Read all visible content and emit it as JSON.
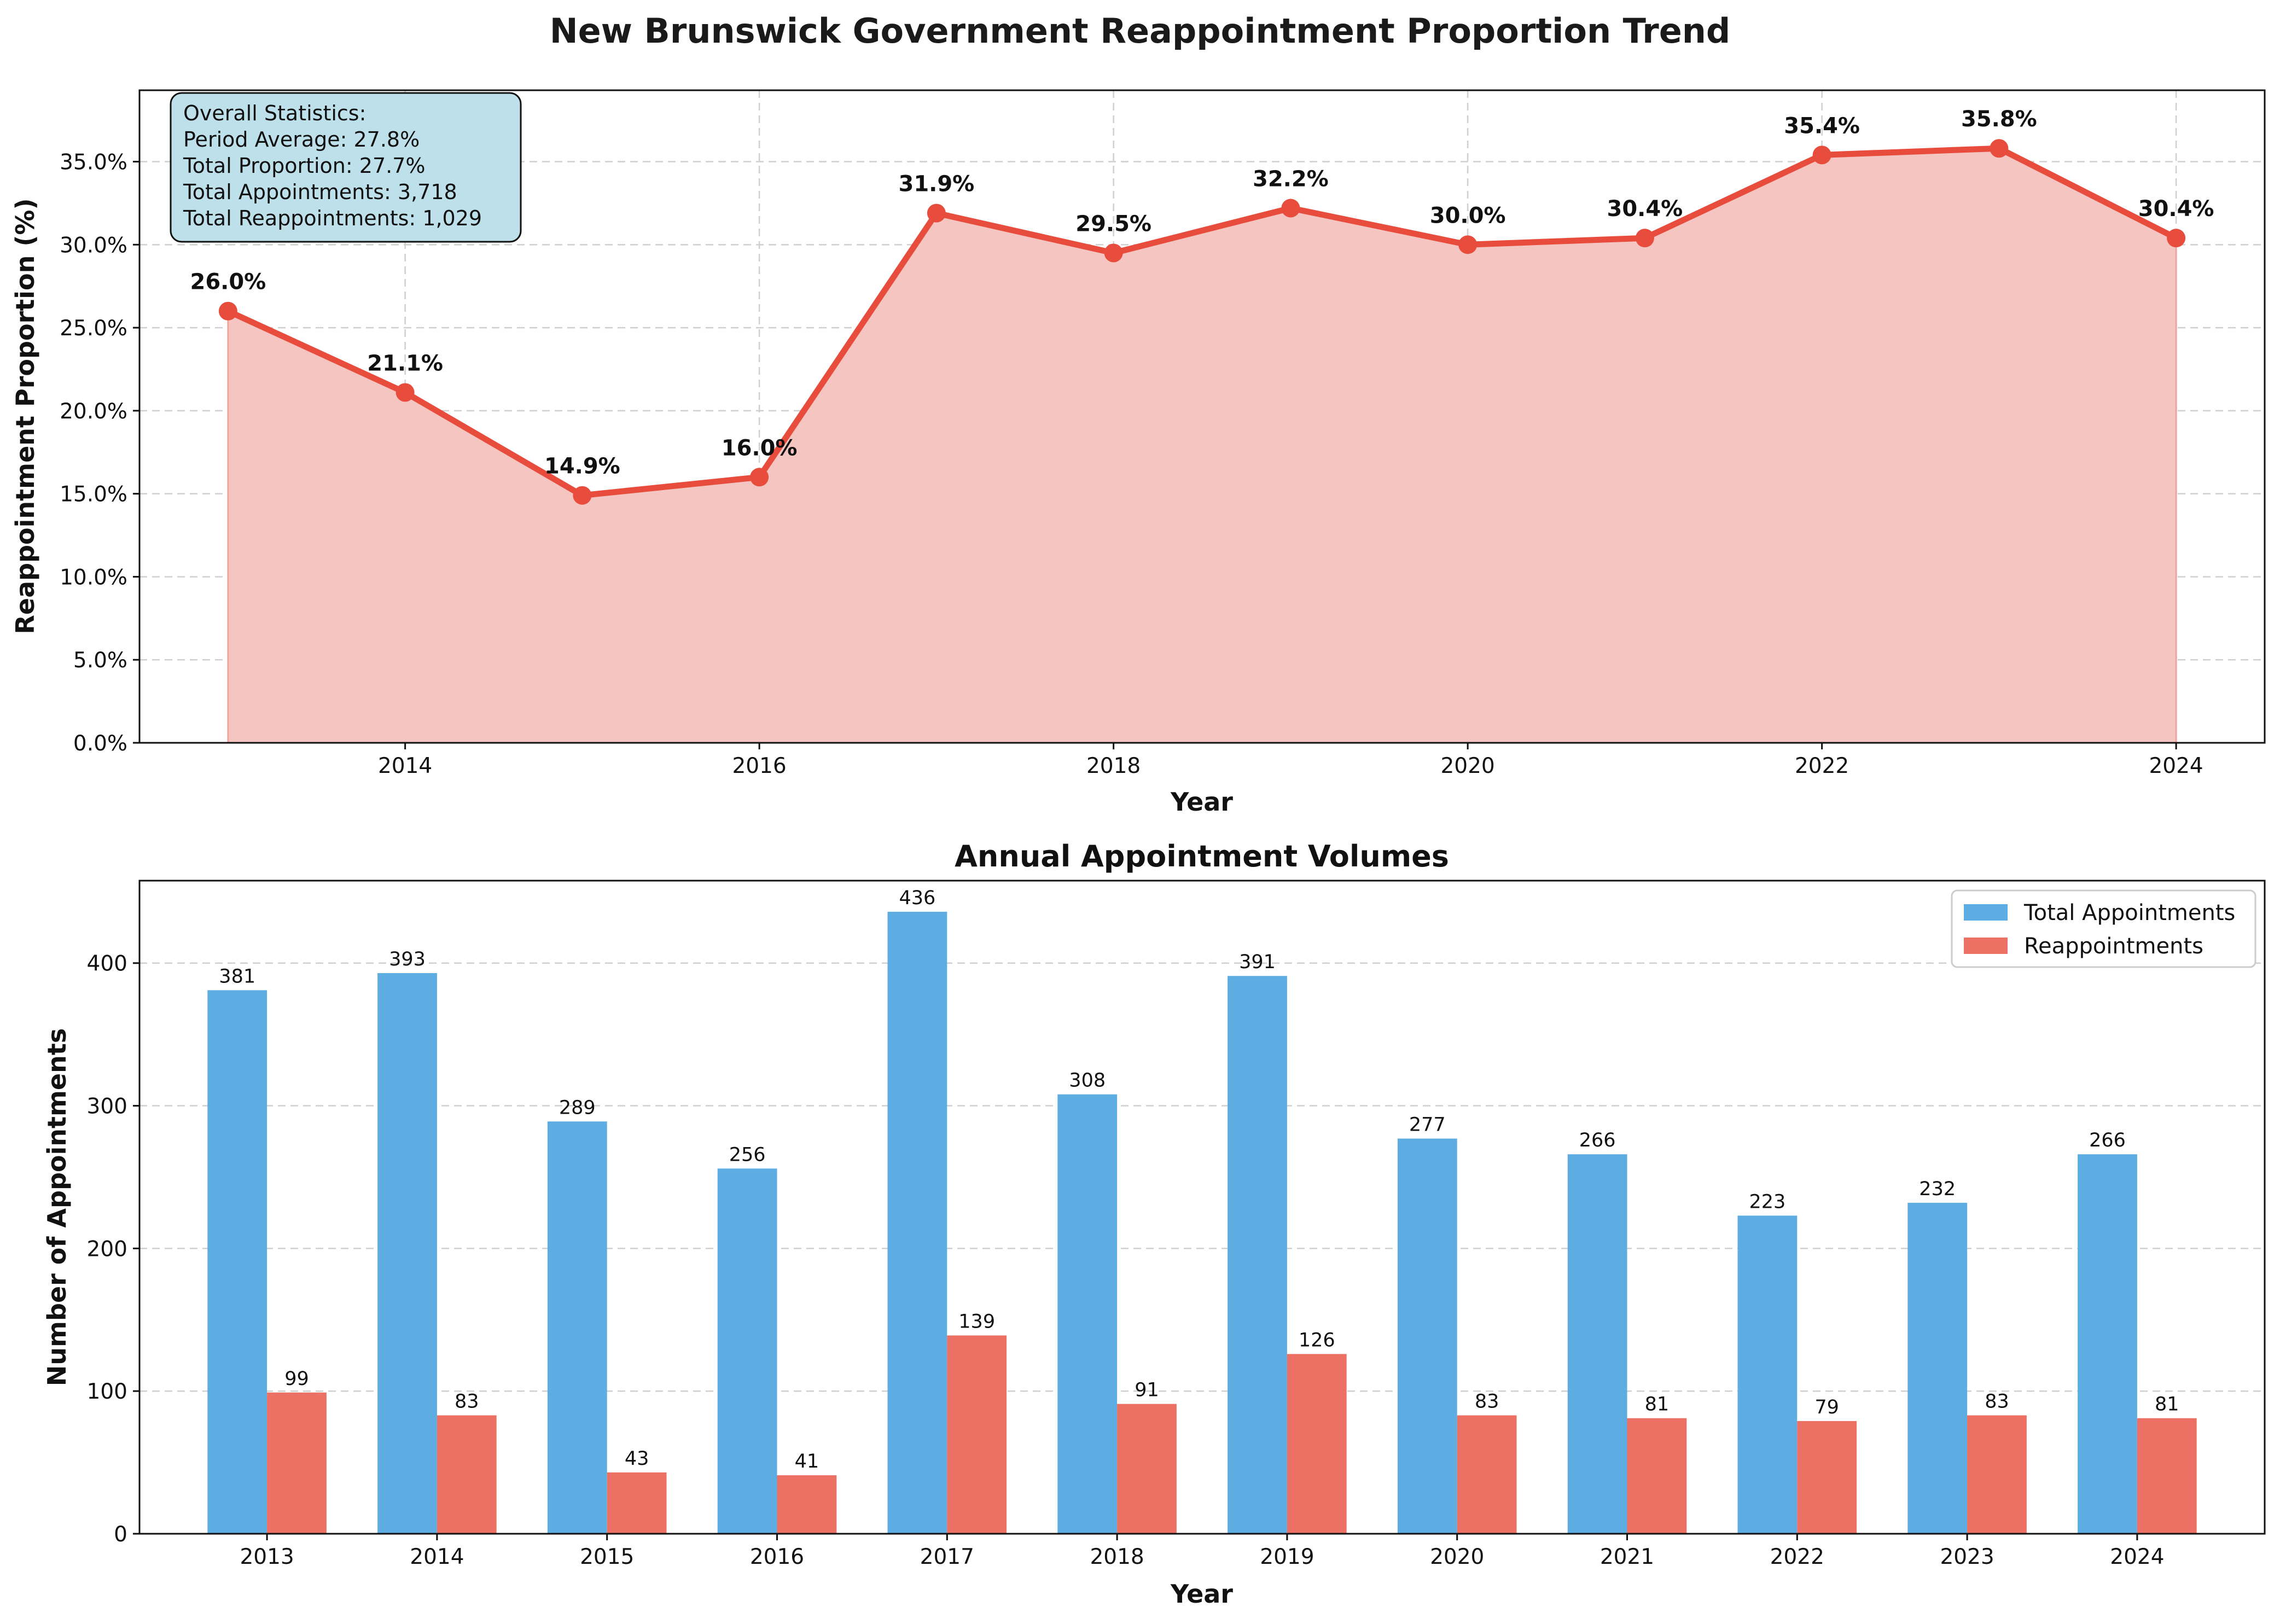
{
  "figure": {
    "title": "New Brunswick Government Reappointment Proportion Trend"
  },
  "colors": {
    "line": "#e74c3c",
    "area": "#f5c6c1",
    "total_bar": "#5dade2",
    "reappointment_bar": "#ec7063",
    "stats_box": "#bde0eb"
  },
  "stats_box": {
    "lines": [
      "Overall Statistics:",
      "Period Average: 27.8%",
      "Total Proportion: 27.7%",
      "Total Appointments: 3,718",
      "Total Reappointments: 1,029"
    ]
  },
  "chart_data": [
    {
      "type": "area",
      "title": "",
      "xlabel": "Year",
      "ylabel": "Reappointment Proportion (%)",
      "x": [
        2013,
        2014,
        2015,
        2016,
        2017,
        2018,
        2019,
        2020,
        2021,
        2022,
        2023,
        2024
      ],
      "values": [
        26.0,
        21.1,
        14.9,
        16.0,
        31.9,
        29.5,
        32.2,
        30.0,
        30.4,
        35.4,
        35.8,
        30.4
      ],
      "point_labels": [
        "26.0%",
        "21.1%",
        "14.9%",
        "16.0%",
        "31.9%",
        "29.5%",
        "32.2%",
        "30.0%",
        "30.4%",
        "35.4%",
        "35.8%",
        "30.4%"
      ],
      "xlim": [
        2012.5,
        2024.5
      ],
      "ylim": [
        0,
        39.3
      ],
      "x_ticks": [
        2014,
        2016,
        2018,
        2020,
        2022,
        2024
      ],
      "x_tick_labels": [
        "2014",
        "2016",
        "2018",
        "2020",
        "2022",
        "2024"
      ],
      "y_ticks": [
        0,
        5,
        10,
        15,
        20,
        25,
        30,
        35
      ],
      "y_tick_labels": [
        "0.0%",
        "5.0%",
        "10.0%",
        "15.0%",
        "20.0%",
        "25.0%",
        "30.0%",
        "35.0%"
      ],
      "grid": true
    },
    {
      "type": "bar",
      "title": "Annual Appointment Volumes",
      "xlabel": "Year",
      "ylabel": "Number of Appointments",
      "categories": [
        "2013",
        "2014",
        "2015",
        "2016",
        "2017",
        "2018",
        "2019",
        "2020",
        "2021",
        "2022",
        "2023",
        "2024"
      ],
      "series": [
        {
          "name": "Total Appointments",
          "values": [
            381,
            393,
            289,
            256,
            436,
            308,
            391,
            277,
            266,
            223,
            232,
            266
          ]
        },
        {
          "name": "Reappointments",
          "values": [
            99,
            83,
            43,
            41,
            139,
            91,
            126,
            83,
            81,
            79,
            83,
            81
          ]
        }
      ],
      "ylim": [
        0,
        457.8
      ],
      "y_ticks": [
        0,
        100,
        200,
        300,
        400
      ],
      "y_tick_labels": [
        "0",
        "100",
        "200",
        "300",
        "400"
      ],
      "legend": "top-right",
      "grid": true
    }
  ]
}
